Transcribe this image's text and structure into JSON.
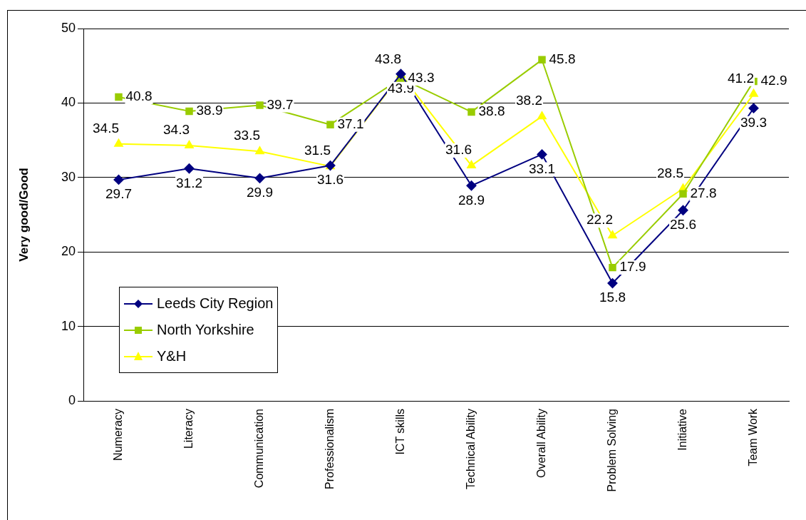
{
  "chart_data": {
    "type": "line",
    "ylabel": "Very good/Good",
    "categories": [
      "Numeracy",
      "Literacy",
      "Communication",
      "Professionalism",
      "ICT skills",
      "Technical Ability",
      "Overall Ability",
      "Problem Solving",
      "Initiative",
      "Team Work"
    ],
    "series": [
      {
        "name": "Leeds City Region",
        "color": "#000080",
        "marker": "diamond",
        "values": [
          29.7,
          31.2,
          29.9,
          31.6,
          43.9,
          28.9,
          33.1,
          15.8,
          25.6,
          39.3
        ]
      },
      {
        "name": "North Yorkshire",
        "color": "#99cc00",
        "marker": "square",
        "values": [
          40.8,
          38.9,
          39.7,
          37.1,
          43.3,
          38.8,
          45.8,
          17.9,
          27.8,
          42.9
        ]
      },
      {
        "name": "Y&H",
        "color": "#ffff00",
        "marker": "triangle",
        "values": [
          34.5,
          34.3,
          33.5,
          31.5,
          43.8,
          31.6,
          38.2,
          22.2,
          28.5,
          41.2
        ]
      }
    ],
    "ylim": [
      0,
      50
    ],
    "yticks": [
      0,
      10,
      20,
      30,
      40,
      50
    ],
    "grid": "y",
    "legend": "bottom left",
    "data_labels": true,
    "line_style": "solid"
  }
}
